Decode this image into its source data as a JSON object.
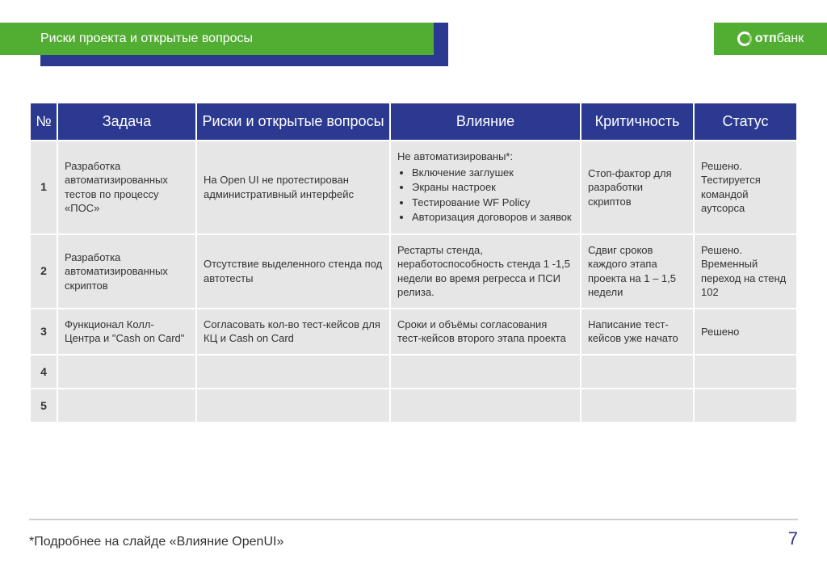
{
  "header": {
    "title": "Риски проекта и открытые вопросы",
    "accent_green": "#52ae32",
    "accent_blue": "#2b3990"
  },
  "logo": {
    "bold": "отп",
    "light": "банк"
  },
  "table": {
    "columns": [
      "№",
      "Задача",
      "Риски и открытые вопросы",
      "Влияние",
      "Критичность",
      "Статус"
    ],
    "rows": [
      {
        "num": "1",
        "task": "Разработка автоматизированных тестов по процессу «ПОС»",
        "risk": "На Open UI не протестирован административный интерфейс",
        "impact_lead": "Не автоматизированы*:",
        "impact_items": [
          "Включение заглушек",
          "Экраны настроек",
          "Тестирование WF Policy",
          "Авторизация договоров и заявок"
        ],
        "crit": "Стоп-фактор для разработки скриптов",
        "status": "Решено. Тестируется командой аутсорса"
      },
      {
        "num": "2",
        "task": "Разработка автоматизированных скриптов",
        "risk": "Отсутствие выделенного стенда под автотесты",
        "impact": "Рестарты стенда, неработоспособность стенда 1 -1,5 недели во время регресса и ПСИ релиза.",
        "crit": "Сдвиг сроков каждого этапа проекта на 1 – 1,5 недели",
        "status": "Решено. Временный переход на стенд 102"
      },
      {
        "num": "3",
        "task": "Функционал Колл-Центра и \"Cash on Card\"",
        "risk": "Согласовать кол-во тест-кейсов для КЦ и Cash on Card",
        "impact": "Сроки и объёмы согласования тест-кейсов второго этапа проекта",
        "crit": "Написание тест-кейсов уже начато",
        "status": "Решено"
      },
      {
        "num": "4",
        "task": "",
        "risk": "",
        "impact": "",
        "crit": "",
        "status": ""
      },
      {
        "num": "5",
        "task": "",
        "risk": "",
        "impact": "",
        "crit": "",
        "status": ""
      }
    ]
  },
  "footer": {
    "note": "*Подробнее на слайде «Влияние OpenUI»",
    "page": "7"
  }
}
